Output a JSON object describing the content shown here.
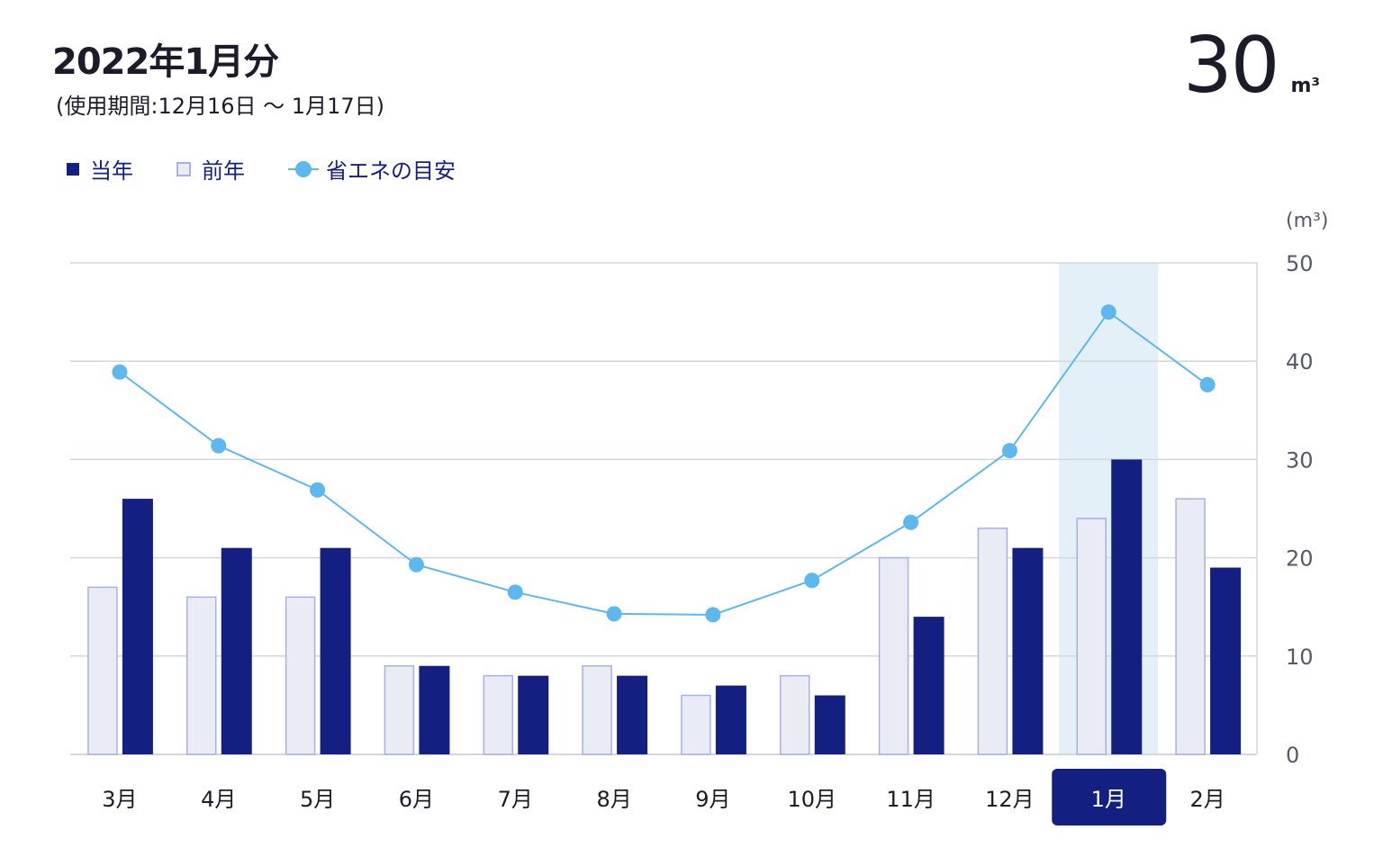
{
  "header": {
    "title": "2022年1月分",
    "period": "(使用期間:12月16日 〜 1月17日)",
    "usage_value": "30",
    "usage_unit": "m³"
  },
  "legend": {
    "current": "当年",
    "previous": "前年",
    "target": "省エネの目安"
  },
  "colors": {
    "current": "#141f82",
    "previous_fill": "#e9ebf5",
    "previous_stroke": "#a9b0e3",
    "target": "#5db8f0",
    "highlight": "#e3f0f8",
    "grid": "#d4d6dd"
  },
  "chart_data": {
    "type": "bar",
    "categories": [
      "3月",
      "4月",
      "5月",
      "6月",
      "7月",
      "8月",
      "9月",
      "10月",
      "11月",
      "12月",
      "1月",
      "2月"
    ],
    "series": [
      {
        "name": "前年",
        "values": [
          17,
          16,
          16,
          9,
          8,
          9,
          6,
          8,
          20,
          23,
          24,
          26
        ]
      },
      {
        "name": "当年",
        "values": [
          26,
          21,
          21,
          9,
          8,
          8,
          7,
          6,
          14,
          21,
          30,
          19
        ]
      },
      {
        "name": "省エネの目安",
        "type": "line",
        "values": [
          38.9,
          31.4,
          26.9,
          19.3,
          16.5,
          14.3,
          14.2,
          17.7,
          23.6,
          30.9,
          45.0,
          37.6
        ]
      }
    ],
    "ylim": [
      0,
      50
    ],
    "yticks": [
      0,
      10,
      20,
      30,
      40,
      50
    ],
    "yunit": "(m³)",
    "highlight_category": "1月",
    "grid": true,
    "legend_position": "top-left"
  }
}
